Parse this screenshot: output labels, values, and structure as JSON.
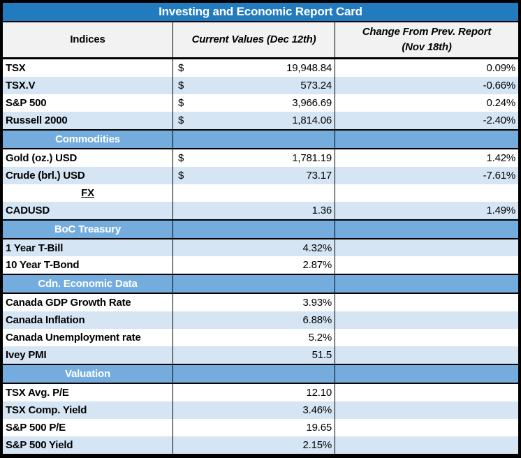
{
  "title": "Investing and Economic Report Card",
  "colors": {
    "title-bar": "#227ABF",
    "title-text": "#FFFFFF",
    "section-header": "#74ACDE",
    "section-text": "#FFFFFF",
    "row-alt": "#D5E5F4",
    "header-bg": "#F2F2F2",
    "grid-border": "#000000",
    "text": "#000000"
  },
  "chart_data": {
    "type": "table",
    "title": "Investing and Economic Report Card",
    "columns": [
      "Indices",
      "Current Values (Dec 12th)",
      "Change From Prev. Report (Nov 18th)"
    ],
    "header": {
      "col1": "Indices",
      "col2": "Current Values (Dec 12th)",
      "col3_line1": "Change From Prev. Report",
      "col3_line2": "(Nov 18th)"
    },
    "rows": [
      {
        "type": "data",
        "shade": "white",
        "label": "TSX",
        "currency": "$",
        "value": "19,948.84",
        "change": "0.09%"
      },
      {
        "type": "data",
        "shade": "blue",
        "label": "TSX.V",
        "currency": "$",
        "value": "573.24",
        "change": "-0.66%"
      },
      {
        "type": "data",
        "shade": "white",
        "label": "S&P 500",
        "currency": "$",
        "value": "3,966.69",
        "change": "0.24%"
      },
      {
        "type": "data",
        "shade": "blue",
        "label": "Russell 2000",
        "currency": "$",
        "value": "1,814.06",
        "change": "-2.40%"
      },
      {
        "type": "section",
        "label": "Commodities"
      },
      {
        "type": "data",
        "shade": "white",
        "label": "Gold (oz.) USD",
        "currency": "$",
        "value": "1,781.19",
        "change": "1.42%"
      },
      {
        "type": "data",
        "shade": "blue",
        "label": "Crude (brl.) USD",
        "currency": "$",
        "value": "73.17",
        "change": "-7.61%"
      },
      {
        "type": "subsection",
        "shade": "white",
        "label": "FX"
      },
      {
        "type": "data",
        "shade": "blue",
        "label": "CADUSD",
        "currency": "",
        "value": "1.36",
        "change": "1.49%"
      },
      {
        "type": "section",
        "label": "BoC Treasury"
      },
      {
        "type": "data",
        "shade": "blue",
        "label": "1 Year T-Bill",
        "currency": "",
        "value": "4.32%",
        "change": ""
      },
      {
        "type": "data",
        "shade": "white",
        "label": "10 Year T-Bond",
        "currency": "",
        "value": "2.87%",
        "change": ""
      },
      {
        "type": "section",
        "label": "Cdn. Economic Data"
      },
      {
        "type": "data",
        "shade": "white",
        "label": "Canada GDP Growth Rate",
        "currency": "",
        "value": "3.93%",
        "change": ""
      },
      {
        "type": "data",
        "shade": "blue",
        "label": "Canada Inflation",
        "currency": "",
        "value": "6.88%",
        "change": ""
      },
      {
        "type": "data",
        "shade": "white",
        "label": "Canada Unemployment rate",
        "currency": "",
        "value": "5.2%",
        "change": ""
      },
      {
        "type": "data",
        "shade": "blue",
        "label": "Ivey PMI",
        "currency": "",
        "value": "51.5",
        "change": ""
      },
      {
        "type": "section",
        "label": "Valuation"
      },
      {
        "type": "data",
        "shade": "white",
        "label": "TSX Avg. P/E",
        "currency": "",
        "value": "12.10",
        "change": ""
      },
      {
        "type": "data",
        "shade": "blue",
        "label": "TSX Comp. Yield",
        "currency": "",
        "value": "3.46%",
        "change": ""
      },
      {
        "type": "data",
        "shade": "white",
        "label": "S&P 500 P/E",
        "currency": "",
        "value": "19.65",
        "change": ""
      },
      {
        "type": "data",
        "shade": "blue",
        "label": "S&P 500 Yield",
        "currency": "",
        "value": "2.15%",
        "change": ""
      }
    ]
  }
}
